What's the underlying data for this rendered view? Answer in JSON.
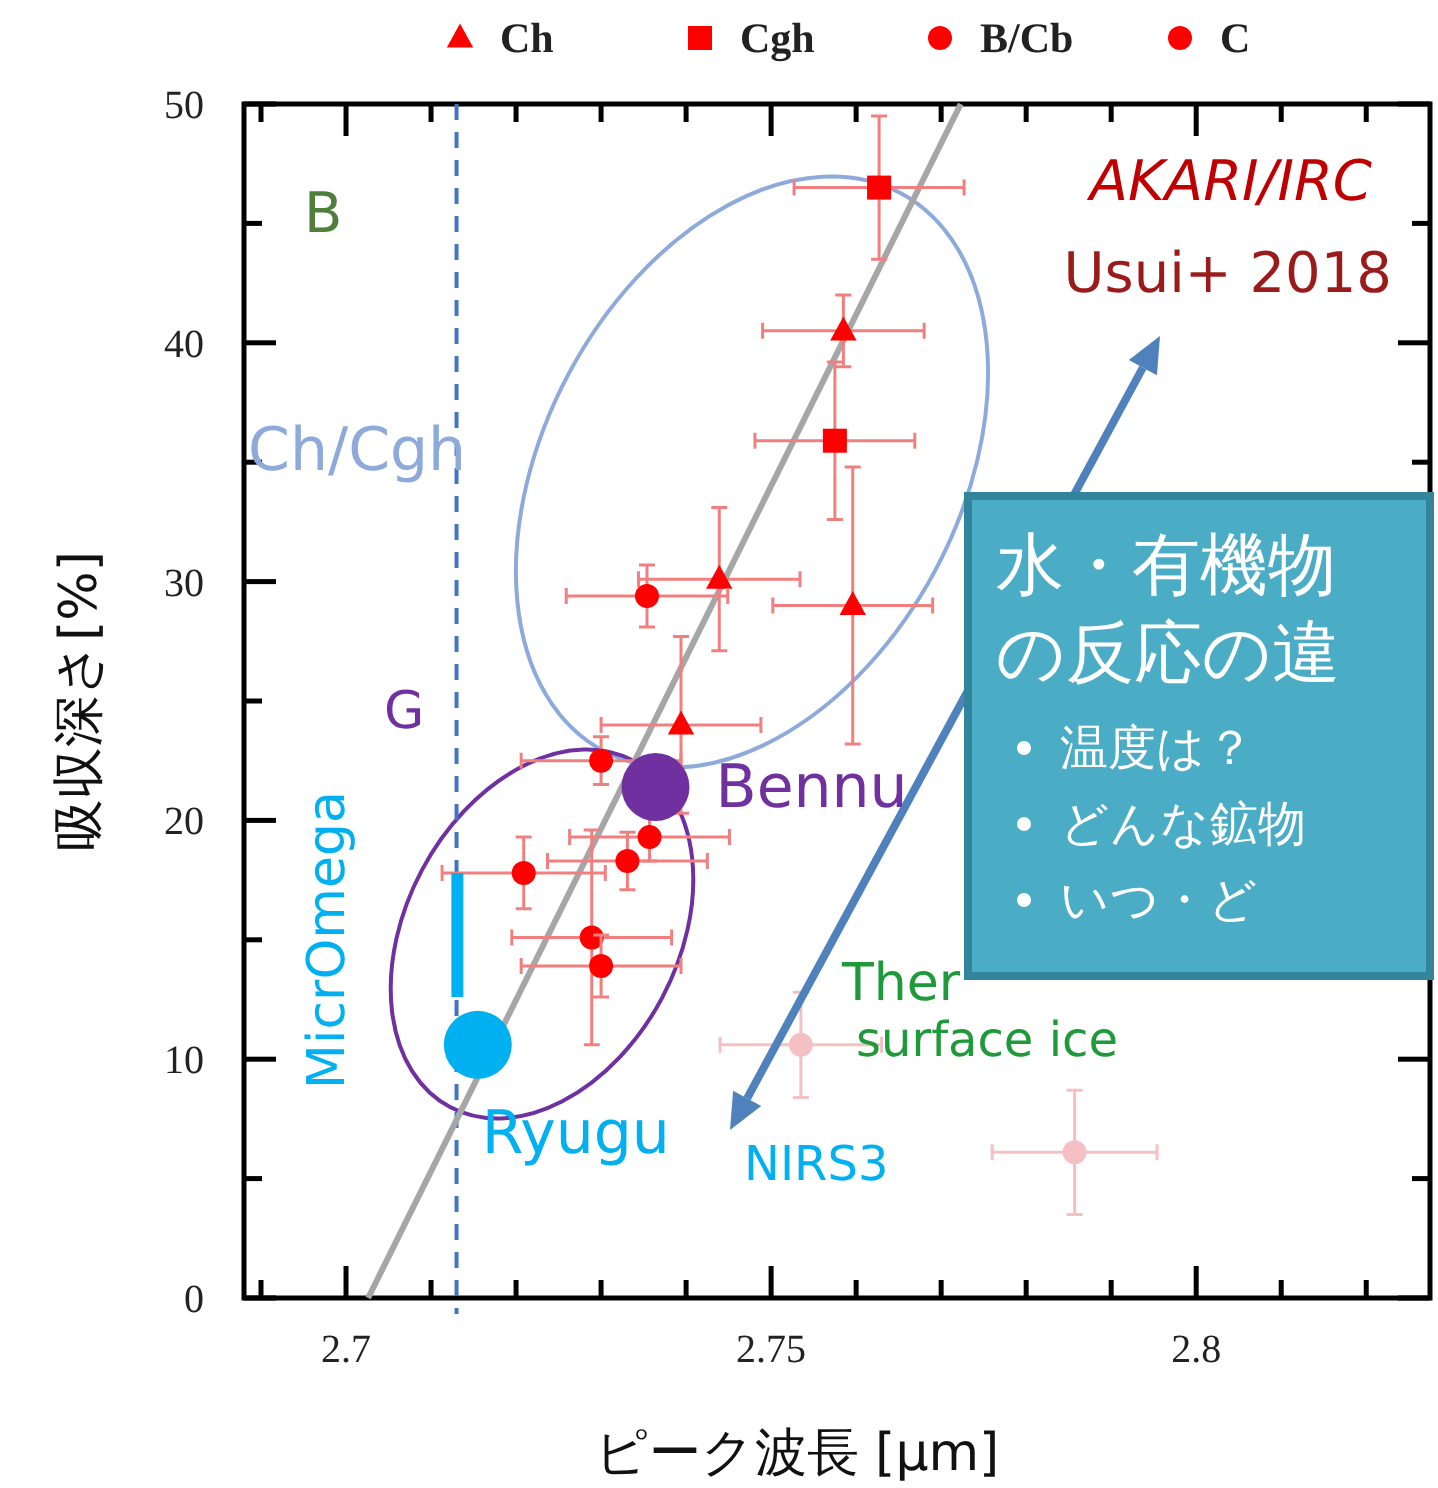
{
  "chart_data": {
    "type": "scatter",
    "xlabel": "ピーク波長 [μm]",
    "ylabel": "吸収深さ[%]",
    "xlim": [
      2.688,
      2.8275
    ],
    "ylim": [
      0,
      50
    ],
    "xticks": [
      {
        "value": 2.69,
        "label": null
      },
      2.7,
      {
        "value": 2.71,
        "label": null
      },
      {
        "value": 2.72,
        "label": null
      },
      {
        "value": 2.73,
        "label": null
      },
      {
        "value": 2.74,
        "label": null
      },
      2.75,
      {
        "value": 2.76,
        "label": null
      },
      {
        "value": 2.77,
        "label": null
      },
      {
        "value": 2.78,
        "label": null
      },
      {
        "value": 2.79,
        "label": null
      },
      2.8,
      {
        "value": 2.81,
        "label": null
      },
      {
        "value": 2.82,
        "label": null
      }
    ],
    "yticks": [
      0,
      {
        "value": 5,
        "label": null
      },
      10,
      {
        "value": 15,
        "label": null
      },
      20,
      {
        "value": 25,
        "label": null
      },
      30,
      {
        "value": 35,
        "label": null
      },
      40,
      {
        "value": 45,
        "label": null
      },
      50
    ],
    "legend": "top",
    "grid": false,
    "ref_lines": [
      {
        "axis": "x",
        "value": 2.713,
        "color": "#4472c4",
        "line_style": "dashed"
      }
    ],
    "series": [
      {
        "type": "line",
        "color": "#a6a6a6",
        "marker": "none",
        "x": [
          2.7026,
          2.7723
        ],
        "values": [
          0,
          50
        ]
      },
      {
        "name": "Ch",
        "color": "#ff0000",
        "marker": "triangle",
        "x": [
          2.7585,
          2.7596,
          2.7439,
          2.7394
        ],
        "values": [
          40.5,
          29.0,
          30.1,
          24.0
        ],
        "xerrors": [
          0.0095,
          0.0094,
          0.0095,
          0.0094
        ],
        "errors": [
          1.5,
          5.8,
          3.0,
          3.7
        ]
      },
      {
        "name": "Cgh",
        "color": "#ff0000",
        "marker": "square",
        "x": [
          2.7627,
          2.7575
        ],
        "values": [
          46.5,
          35.9
        ],
        "xerrors": [
          0.01,
          0.0094
        ],
        "errors": [
          3.0,
          3.3
        ]
      },
      {
        "name": "B/Cb",
        "color": "#ff0000",
        "marker": "circle",
        "x": [
          2.7354,
          2.7331
        ],
        "values": [
          29.4,
          18.3
        ],
        "xerrors": [
          0.0095,
          0.0094
        ],
        "errors": [
          1.3,
          1.2
        ]
      },
      {
        "name": "C",
        "color": "#ff0000",
        "marker": "circle",
        "x": [
          2.73,
          2.7357,
          2.7209,
          2.7289,
          2.73
        ],
        "values": [
          22.5,
          19.3,
          17.8,
          15.1,
          13.9
        ],
        "xerrors": [
          0.0094,
          0.0094,
          0.0096,
          0.0094,
          0.0094
        ],
        "errors": [
          1.0,
          1.0,
          1.5,
          4.5,
          1.3
        ]
      },
      {
        "color": "#f4c0c4",
        "marker": "circle",
        "x": [
          2.7857,
          2.7535
        ],
        "values": [
          6.1,
          10.6
        ],
        "xerrors": [
          0.0097,
          0.0095
        ],
        "errors": [
          2.6,
          2.2
        ]
      },
      {
        "type": "line",
        "color": "#00b0f0",
        "marker": "none",
        "x": [
          2.7131,
          2.7131
        ],
        "values": [
          12.6,
          17.8
        ]
      },
      {
        "type": "bubble",
        "color": "#7030a0",
        "x": [
          2.7364
        ],
        "values": [
          21.4
        ],
        "sizes": [
          1
        ]
      },
      {
        "type": "bubble",
        "color": "#00b0f0",
        "x": [
          2.7155
        ],
        "values": [
          10.6
        ],
        "sizes": [
          1
        ]
      }
    ],
    "annotations": [
      "B",
      "Ch/Cgh",
      "G",
      "AKARI/IRC",
      "Usui+ 2018",
      "MicrOmega",
      "Ther",
      "surface ice",
      "NIRS3",
      {
        "text": "Bennu",
        "x": 2.7364,
        "y": 21.4
      },
      {
        "text": "Ryugu",
        "x": 2.7155,
        "y": 10.6
      },
      "水・有機物",
      "の反応の違",
      "温度は？",
      "どんな鉱物",
      "いつ・ど"
    ]
  }
}
